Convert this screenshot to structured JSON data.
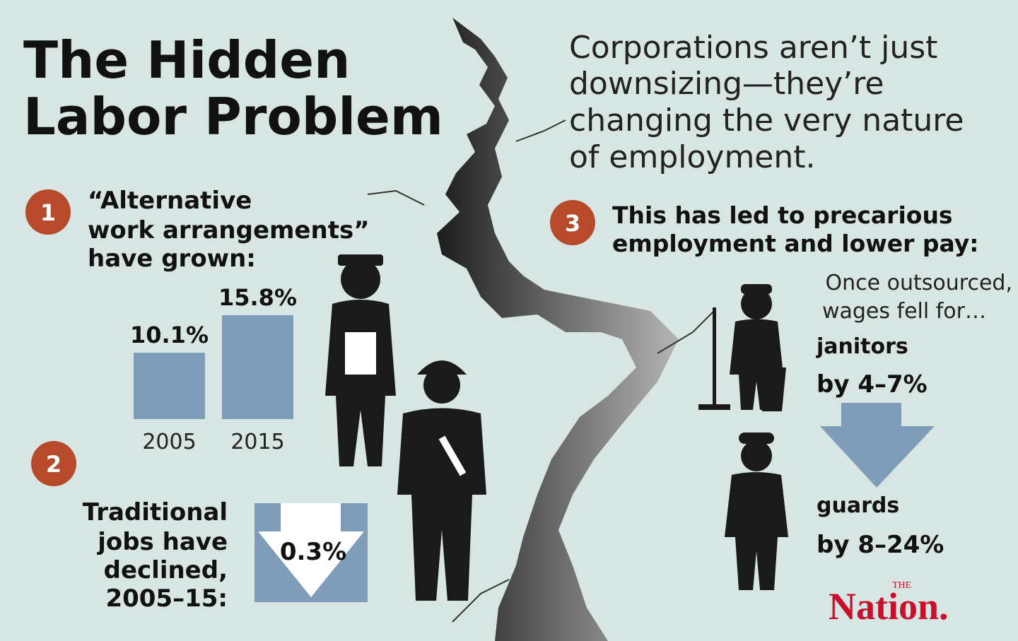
{
  "header": {
    "title": [
      "The Hidden",
      "Labor Problem"
    ],
    "subtitle": [
      "Corporations aren’t just",
      "downsizing—they’re",
      "changing the very nature",
      "of employment."
    ]
  },
  "section_1": {
    "number": "1",
    "heading": [
      "“Alternative",
      "work arrangements”",
      "have grown:"
    ],
    "bars": {
      "categories": [
        "2005",
        "2015"
      ],
      "values": [
        10.1,
        15.8
      ],
      "value_labels": [
        "10.1%",
        "15.8%"
      ]
    }
  },
  "section_2": {
    "number": "2",
    "text": [
      "Traditional",
      "jobs have",
      "declined,",
      "2005–15:"
    ],
    "decline": "0.3%"
  },
  "section_3": {
    "number": "3",
    "heading": [
      "This has led to precarious",
      "employment and lower pay:"
    ],
    "intro": [
      "Once outsourced,",
      "wages fell for…"
    ],
    "items": [
      {
        "label": "janitors",
        "change": "by 4–7%"
      },
      {
        "label": "guards",
        "change": "by 8–24%"
      }
    ]
  },
  "logo": {
    "small": "THE",
    "name": "Nation."
  }
}
